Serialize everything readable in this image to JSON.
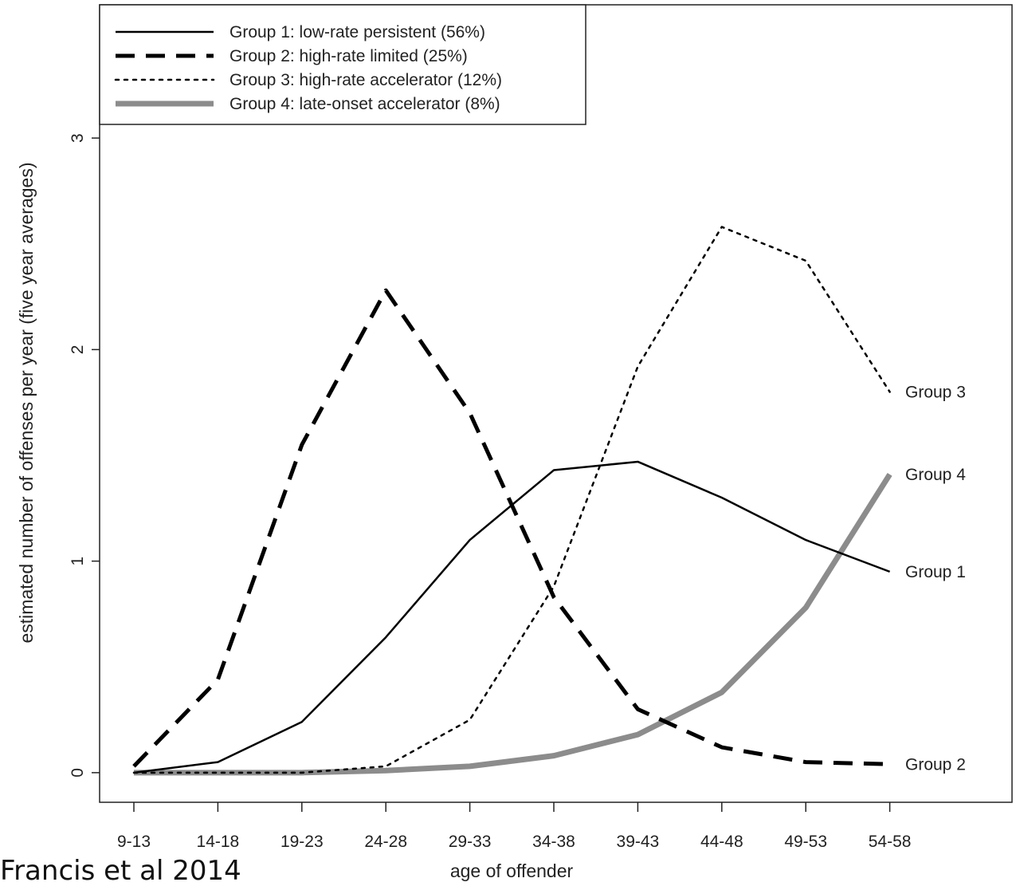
{
  "caption": "Francis et al 2014",
  "chart_data": {
    "type": "line",
    "title": "",
    "xlabel": "age of offender",
    "ylabel": "estimated number of offenses per year (five year averages)",
    "categories": [
      "9-13",
      "14-18",
      "19-23",
      "24-28",
      "29-33",
      "34-38",
      "39-43",
      "44-48",
      "49-53",
      "54-58"
    ],
    "yticks": [
      0,
      1,
      2,
      3
    ],
    "ylim": [
      -0.14,
      3.63
    ],
    "legend_position": "top-left",
    "series": [
      {
        "name": "Group 1: low-rate persistent (56%)",
        "end_label": "Group 1",
        "style": "solid",
        "color": "#000000",
        "values": [
          0.0,
          0.05,
          0.24,
          0.64,
          1.1,
          1.43,
          1.47,
          1.3,
          1.1,
          0.95
        ]
      },
      {
        "name": "Group 2: high-rate limited (25%)",
        "end_label": "Group 2",
        "style": "dashed",
        "color": "#000000",
        "values": [
          0.03,
          0.44,
          1.55,
          2.28,
          1.7,
          0.83,
          0.3,
          0.12,
          0.05,
          0.04
        ]
      },
      {
        "name": "Group 3: high-rate accelerator (12%)",
        "end_label": "Group 3",
        "style": "dotted",
        "color": "#000000",
        "values": [
          0.0,
          0.0,
          0.0,
          0.03,
          0.25,
          0.88,
          1.92,
          2.58,
          2.42,
          1.8
        ]
      },
      {
        "name": "Group 4: late-onset accelerator (8%)",
        "end_label": "Group 4",
        "style": "thick",
        "color": "#8c8c8c",
        "values": [
          0.0,
          0.0,
          0.0,
          0.01,
          0.03,
          0.08,
          0.18,
          0.38,
          0.78,
          1.41
        ]
      }
    ]
  }
}
